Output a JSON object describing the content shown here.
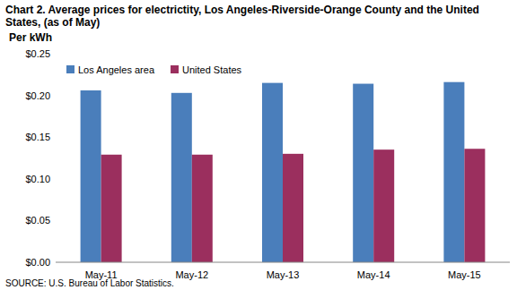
{
  "chart_data": {
    "type": "bar",
    "title": "Chart 2. Average prices for electrictity, Los Angeles-Riverside-Orange County and the United States, (as of May)",
    "y_label": "Per kWh",
    "source": "SOURCE: U.S. Bureau of Labor Statistics.",
    "categories": [
      "May-11",
      "May-12",
      "May-13",
      "May-14",
      "May-15"
    ],
    "series": [
      {
        "name": "Los Angeles area",
        "color": "#4a7ebb",
        "values": [
          0.206,
          0.203,
          0.215,
          0.214,
          0.216
        ]
      },
      {
        "name": "United States",
        "color": "#9b2f5e",
        "values": [
          0.129,
          0.129,
          0.13,
          0.135,
          0.136
        ]
      }
    ],
    "ylim": [
      0,
      0.25
    ],
    "yticks": [
      {
        "value": 0,
        "label": "$0.00"
      },
      {
        "value": 0.05,
        "label": "$0.05"
      },
      {
        "value": 0.1,
        "label": "$0.10"
      },
      {
        "value": 0.15,
        "label": "$0.15"
      },
      {
        "value": 0.2,
        "label": "$0.20"
      },
      {
        "value": 0.25,
        "label": "$0.25"
      }
    ],
    "grid": false,
    "legend": "top-left"
  }
}
